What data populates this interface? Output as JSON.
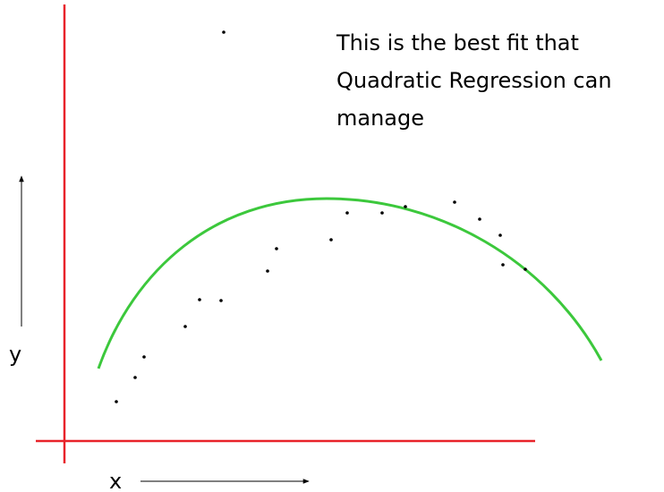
{
  "annotation": {
    "lines": [
      "This is the best fit that",
      "Quadratic Regression can",
      "manage"
    ]
  },
  "axes": {
    "x_label": "x",
    "y_label": "y"
  }
}
